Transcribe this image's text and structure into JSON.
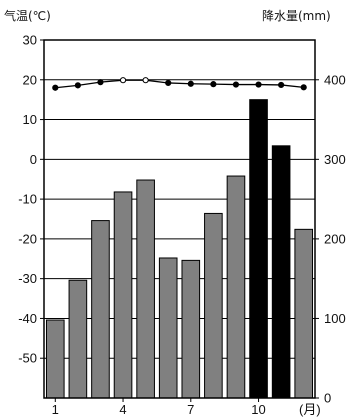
{
  "chart_data": {
    "type": "bar+line",
    "title": "",
    "left_axis": {
      "label": "气温(℃)",
      "range": [
        -60,
        30
      ],
      "ticks": [
        30,
        20,
        10,
        0,
        -10,
        -20,
        -30,
        -40,
        -50
      ]
    },
    "right_axis": {
      "label": "降水量(mm)",
      "range": [
        0,
        450
      ],
      "ticks": [
        400,
        300,
        200,
        100,
        0
      ]
    },
    "x_axis": {
      "unit_label": "(月)",
      "categories": [
        1,
        2,
        3,
        4,
        5,
        6,
        7,
        8,
        9,
        10,
        11,
        12
      ],
      "tick_labels": [
        "1",
        "4",
        "7",
        "10"
      ]
    },
    "series": [
      {
        "kind": "line",
        "axis": "left",
        "values": [
          18,
          18.6,
          19.4,
          19.9,
          19.9,
          19.2,
          19.0,
          18.9,
          18.8,
          18.8,
          18.7,
          18.1
        ]
      },
      {
        "kind": "bar",
        "axis": "right",
        "values": [
          98,
          148,
          223,
          259,
          274,
          176,
          173,
          232,
          279,
          375,
          317,
          212
        ],
        "bar_colors": [
          "#808080",
          "#808080",
          "#808080",
          "#808080",
          "#808080",
          "#808080",
          "#808080",
          "#808080",
          "#808080",
          "#000000",
          "#000000",
          "#808080"
        ]
      }
    ],
    "colors": {
      "bar_gray": "#808080",
      "bar_black": "#000000",
      "frame": "#000000"
    }
  }
}
